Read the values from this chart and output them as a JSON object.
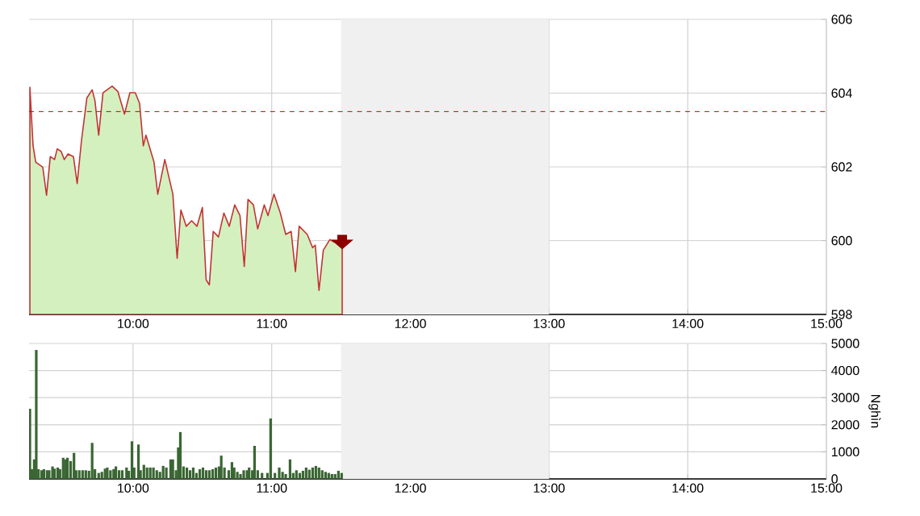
{
  "chart_data": [
    {
      "type": "area",
      "xlim": [
        9.25,
        15
      ],
      "ylim": [
        598,
        606
      ],
      "xticks": [
        {
          "value": 10,
          "label": "10:00"
        },
        {
          "value": 11,
          "label": "11:00"
        },
        {
          "value": 12,
          "label": "12:00"
        },
        {
          "value": 13,
          "label": "13:00"
        },
        {
          "value": 14,
          "label": "14:00"
        },
        {
          "value": 15,
          "label": "15:00"
        }
      ],
      "yticks": [
        598,
        600,
        602,
        604,
        606
      ],
      "grid": true,
      "bands": [
        {
          "axis": "x",
          "from": 11.5,
          "to": 13,
          "color": "#f0f0f0"
        }
      ],
      "ref_lines": [
        {
          "axis": "y",
          "value": 603.5,
          "color": "#cc0000",
          "line_style": "dashed"
        }
      ],
      "series": [
        {
          "color": "#d4f0bf",
          "x": [
            9.256,
            9.279,
            9.298,
            9.349,
            9.376,
            9.403,
            9.434,
            9.453,
            9.481,
            9.504,
            9.531,
            9.57,
            9.597,
            9.628,
            9.667,
            9.705,
            9.725,
            9.752,
            9.783,
            9.849,
            9.891,
            9.938,
            9.977,
            10.016,
            10.047,
            10.074,
            10.093,
            10.151,
            10.178,
            10.229,
            10.287,
            10.318,
            10.345,
            10.384,
            10.422,
            10.461,
            10.5,
            10.527,
            10.55,
            10.578,
            10.616,
            10.655,
            10.694,
            10.733,
            10.771,
            10.802,
            10.829,
            10.868,
            10.899,
            10.946,
            10.973,
            11.016,
            11.062,
            11.101,
            11.14,
            11.171,
            11.198,
            11.256,
            11.295,
            11.314,
            11.341,
            11.372,
            11.419,
            11.45,
            11.508
          ],
          "values": [
            604.16,
            602.57,
            602.13,
            601.99,
            601.23,
            602.28,
            602.2,
            602.49,
            602.42,
            602.2,
            602.35,
            602.28,
            601.55,
            602.71,
            603.87,
            604.09,
            603.8,
            602.86,
            604.01,
            604.19,
            604.04,
            603.43,
            604.01,
            604.01,
            603.72,
            602.57,
            602.86,
            602.13,
            601.26,
            602.2,
            601.26,
            599.52,
            600.83,
            600.39,
            600.54,
            600.39,
            600.9,
            598.94,
            598.8,
            600.25,
            600.1,
            600.75,
            600.39,
            600.97,
            600.68,
            599.3,
            601.12,
            600.97,
            600.32,
            600.97,
            600.68,
            601.26,
            600.75,
            600.17,
            600.25,
            599.16,
            600.39,
            600.17,
            599.81,
            599.88,
            598.65,
            599.74,
            600.03,
            599.96,
            600.03
          ]
        }
      ]
    },
    {
      "type": "bar",
      "xlim": [
        9.25,
        15
      ],
      "ylim": [
        0,
        5000
      ],
      "ylabel": "Nghìn",
      "xticks": [
        {
          "value": 10,
          "label": "10:00"
        },
        {
          "value": 11,
          "label": "11:00"
        },
        {
          "value": 12,
          "label": "12:00"
        },
        {
          "value": 13,
          "label": "13:00"
        },
        {
          "value": 14,
          "label": "14:00"
        },
        {
          "value": 15,
          "label": "15:00"
        }
      ],
      "yticks": [
        0,
        1000,
        2000,
        3000,
        4000,
        5000
      ],
      "grid": true,
      "bands": [
        {
          "axis": "x",
          "from": 11.5,
          "to": 13,
          "color": "#f0f0f0"
        }
      ],
      "series": [
        {
          "color": "#3a6633",
          "x": [
            9.256,
            9.271,
            9.287,
            9.302,
            9.318,
            9.341,
            9.357,
            9.38,
            9.395,
            9.419,
            9.434,
            9.457,
            9.473,
            9.496,
            9.512,
            9.527,
            9.55,
            9.574,
            9.589,
            9.612,
            9.636,
            9.659,
            9.682,
            9.705,
            9.725,
            9.752,
            9.775,
            9.798,
            9.814,
            9.837,
            9.86,
            9.876,
            9.899,
            9.922,
            9.953,
            9.969,
            9.992,
            10.008,
            10.039,
            10.054,
            10.078,
            10.101,
            10.124,
            10.147,
            10.171,
            10.194,
            10.217,
            10.24,
            10.271,
            10.287,
            10.31,
            10.326,
            10.341,
            10.364,
            10.388,
            10.411,
            10.434,
            10.457,
            10.481,
            10.504,
            10.527,
            10.55,
            10.574,
            10.597,
            10.62,
            10.636,
            10.659,
            10.69,
            10.713,
            10.729,
            10.752,
            10.775,
            10.798,
            10.822,
            10.837,
            10.86,
            10.876,
            10.899,
            10.93,
            10.969,
            10.992,
            11.023,
            11.054,
            11.078,
            11.101,
            11.132,
            11.155,
            11.178,
            11.202,
            11.225,
            11.248,
            11.271,
            11.295,
            11.318,
            11.341,
            11.364,
            11.388,
            11.411,
            11.434,
            11.457,
            11.481,
            11.504
          ],
          "values": [
            2590,
            360,
            720,
            4760,
            360,
            320,
            360,
            320,
            320,
            460,
            380,
            420,
            360,
            780,
            720,
            780,
            660,
            960,
            320,
            320,
            320,
            320,
            300,
            1330,
            360,
            220,
            260,
            380,
            420,
            320,
            360,
            460,
            320,
            320,
            420,
            300,
            1390,
            420,
            1270,
            320,
            520,
            420,
            420,
            420,
            320,
            260,
            480,
            420,
            720,
            720,
            320,
            1160,
            1730,
            460,
            420,
            320,
            420,
            220,
            360,
            420,
            320,
            320,
            360,
            420,
            460,
            860,
            420,
            320,
            620,
            420,
            260,
            180,
            320,
            320,
            420,
            320,
            1220,
            320,
            220,
            220,
            2230,
            220,
            420,
            260,
            180,
            720,
            220,
            320,
            220,
            300,
            420,
            340,
            420,
            480,
            420,
            320,
            260,
            220,
            180,
            180,
            300,
            220
          ]
        }
      ]
    }
  ]
}
